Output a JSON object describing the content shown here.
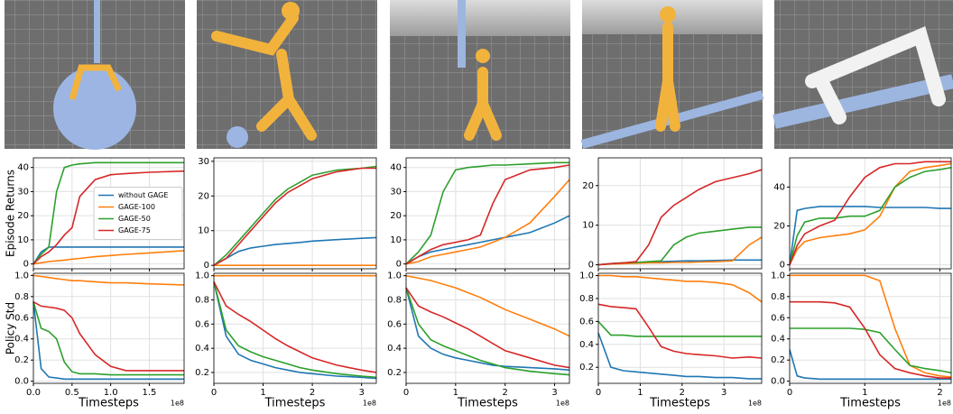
{
  "chart_data": [
    {
      "type": "line",
      "y_label": "Episode Returns",
      "legend": "center right",
      "x_tick_labels": false,
      "x": [
        0,
        0.1,
        0.2,
        0.3,
        0.4,
        0.5,
        0.6,
        0.8,
        1.0,
        1.2,
        1.5,
        1.95
      ],
      "xlim": [
        0,
        1.95
      ],
      "xticks": [
        0,
        0.5,
        1,
        1.5
      ],
      "ylim": [
        -2,
        44
      ],
      "yticks": [
        0,
        10,
        20,
        30,
        40
      ],
      "grid": true,
      "series": [
        {
          "name": "without GAGE",
          "color": "#1f77b4",
          "values": [
            0,
            5,
            7,
            7,
            7,
            7,
            7,
            7,
            7,
            7,
            7,
            7
          ]
        },
        {
          "name": "GAGE-100",
          "color": "#ff7f0e",
          "values": [
            0,
            0.5,
            1,
            1.3,
            1.6,
            2,
            2.3,
            3,
            3.5,
            4,
            4.6,
            5.5
          ]
        },
        {
          "name": "GAGE-50",
          "color": "#2ca02c",
          "values": [
            0,
            4,
            7,
            30,
            40,
            41,
            41.5,
            42,
            42,
            42,
            42,
            42
          ]
        },
        {
          "name": "GAGE-75",
          "color": "#d62728",
          "values": [
            0,
            3,
            5,
            8,
            12,
            15,
            28,
            35,
            37,
            37.5,
            38,
            38.5
          ]
        }
      ]
    },
    {
      "type": "line",
      "x_tick_labels": false,
      "x": [
        0,
        0.25,
        0.5,
        0.75,
        1,
        1.25,
        1.5,
        1.75,
        2,
        2.5,
        3,
        3.3
      ],
      "xlim": [
        0,
        3.3
      ],
      "xticks": [
        0,
        1,
        2,
        3
      ],
      "ylim": [
        -1,
        31
      ],
      "yticks": [
        0,
        10,
        20,
        30
      ],
      "grid": true,
      "series": [
        {
          "color": "#1f77b4",
          "values": [
            0,
            2,
            4,
            5,
            5.5,
            6,
            6.3,
            6.6,
            7,
            7.4,
            7.8,
            8
          ]
        },
        {
          "color": "#ff7f0e",
          "values": [
            0,
            0,
            0,
            0,
            0,
            0,
            0,
            0,
            0,
            0,
            0,
            0
          ]
        },
        {
          "color": "#2ca02c",
          "values": [
            0,
            3,
            7,
            11,
            15,
            19,
            22,
            24,
            26,
            27.5,
            28,
            28.5
          ]
        },
        {
          "color": "#d62728",
          "values": [
            0,
            2,
            6,
            10,
            14,
            18,
            21,
            23,
            25,
            27,
            28,
            28
          ]
        }
      ]
    },
    {
      "type": "line",
      "x_tick_labels": false,
      "x": [
        0,
        0.25,
        0.5,
        0.75,
        1,
        1.25,
        1.5,
        1.75,
        2,
        2.5,
        3,
        3.3
      ],
      "xlim": [
        0,
        3.3
      ],
      "xticks": [
        0,
        1,
        2,
        3
      ],
      "ylim": [
        -2,
        44
      ],
      "yticks": [
        0,
        10,
        20,
        30,
        40
      ],
      "grid": true,
      "series": [
        {
          "color": "#1f77b4",
          "values": [
            0,
            3,
            5,
            6,
            7,
            8,
            9,
            10,
            11,
            13,
            17,
            20
          ]
        },
        {
          "color": "#ff7f0e",
          "values": [
            0,
            1,
            3,
            4,
            5,
            6,
            7,
            9,
            11,
            17,
            28,
            35
          ]
        },
        {
          "color": "#2ca02c",
          "values": [
            0,
            5,
            12,
            30,
            39,
            40,
            40.5,
            41,
            41,
            41.5,
            42,
            42
          ]
        },
        {
          "color": "#d62728",
          "values": [
            0,
            3,
            6,
            8,
            9,
            10,
            12,
            25,
            35,
            39,
            40,
            41
          ]
        }
      ]
    },
    {
      "type": "line",
      "x_tick_labels": false,
      "x": [
        0,
        0.3,
        0.6,
        0.9,
        1.2,
        1.5,
        1.8,
        2.1,
        2.4,
        2.8,
        3.2,
        3.6,
        3.9
      ],
      "xlim": [
        0,
        3.9
      ],
      "xticks": [
        0,
        1,
        2,
        3
      ],
      "ylim": [
        -1,
        27
      ],
      "yticks": [
        0,
        10,
        20
      ],
      "grid": true,
      "series": [
        {
          "color": "#1f77b4",
          "values": [
            0,
            0.3,
            0.5,
            0.6,
            0.7,
            0.8,
            0.9,
            1,
            1,
            1.1,
            1.2,
            1.2,
            1.2
          ]
        },
        {
          "color": "#ff7f0e",
          "values": [
            0,
            0.2,
            0.3,
            0.4,
            0.5,
            0.5,
            0.6,
            0.6,
            0.7,
            0.8,
            1,
            5,
            7
          ]
        },
        {
          "color": "#2ca02c",
          "values": [
            0,
            0.3,
            0.5,
            0.6,
            0.8,
            1,
            5,
            7,
            8,
            8.5,
            9,
            9.5,
            9.5
          ]
        },
        {
          "color": "#d62728",
          "values": [
            0,
            0.3,
            0.5,
            0.8,
            5,
            12,
            15,
            17,
            19,
            21,
            22,
            23,
            24
          ]
        }
      ]
    },
    {
      "type": "line",
      "x_tick_labels": false,
      "x": [
        0,
        0.1,
        0.2,
        0.4,
        0.6,
        0.8,
        1.0,
        1.2,
        1.4,
        1.6,
        1.8,
        2.0,
        2.15
      ],
      "xlim": [
        0,
        2.15
      ],
      "xticks": [
        0,
        1,
        2
      ],
      "ylim": [
        -2,
        55
      ],
      "yticks": [
        0,
        20,
        40
      ],
      "grid": true,
      "series": [
        {
          "color": "#1f77b4",
          "values": [
            0,
            28,
            29,
            30,
            30,
            30,
            30,
            29.5,
            29.5,
            29.5,
            29.5,
            29,
            29
          ]
        },
        {
          "color": "#ff7f0e",
          "values": [
            0,
            8,
            12,
            14,
            15,
            16,
            18,
            25,
            40,
            48,
            50,
            51,
            52
          ]
        },
        {
          "color": "#2ca02c",
          "values": [
            0,
            15,
            22,
            24,
            24,
            25,
            25,
            28,
            40,
            45,
            48,
            49,
            50
          ]
        },
        {
          "color": "#d62728",
          "values": [
            0,
            10,
            16,
            20,
            23,
            35,
            45,
            50,
            52,
            52,
            53,
            53,
            53
          ]
        }
      ]
    },
    {
      "type": "line",
      "y_label": "Policy Std",
      "x_label": "Timesteps",
      "x_offset": "1e8",
      "x": [
        0,
        0.1,
        0.2,
        0.3,
        0.4,
        0.5,
        0.6,
        0.8,
        1.0,
        1.2,
        1.5,
        1.95
      ],
      "xlim": [
        0,
        1.95
      ],
      "xticks": [
        {
          "value": 0,
          "label": "0.0"
        },
        {
          "value": 0.5,
          "label": "0.5"
        },
        {
          "value": 1,
          "label": "1.0"
        },
        {
          "value": 1.5,
          "label": "1.5"
        }
      ],
      "ylim": [
        -0.02,
        1.02
      ],
      "yticks": [
        {
          "value": 0,
          "label": "0.0"
        },
        0.2,
        0.4,
        0.6,
        0.8,
        {
          "value": 1,
          "label": "1.0"
        }
      ],
      "grid": true,
      "series": [
        {
          "color": "#1f77b4",
          "values": [
            0.75,
            0.12,
            0.04,
            0.03,
            0.02,
            0.02,
            0.02,
            0.02,
            0.02,
            0.02,
            0.02,
            0.02
          ]
        },
        {
          "color": "#ff7f0e",
          "values": [
            1,
            0.99,
            0.98,
            0.97,
            0.96,
            0.95,
            0.95,
            0.94,
            0.93,
            0.93,
            0.92,
            0.91
          ]
        },
        {
          "color": "#2ca02c",
          "values": [
            0.75,
            0.5,
            0.47,
            0.4,
            0.18,
            0.09,
            0.07,
            0.07,
            0.06,
            0.06,
            0.06,
            0.06
          ]
        },
        {
          "color": "#d62728",
          "values": [
            0.75,
            0.71,
            0.7,
            0.69,
            0.67,
            0.6,
            0.45,
            0.25,
            0.14,
            0.1,
            0.1,
            0.1
          ]
        }
      ]
    },
    {
      "type": "line",
      "x_label": "Timesteps",
      "x_offset": "1e8",
      "x": [
        0,
        0.25,
        0.5,
        0.75,
        1,
        1.25,
        1.5,
        1.75,
        2,
        2.5,
        3,
        3.3
      ],
      "xlim": [
        0,
        3.3
      ],
      "xticks": [
        0,
        1,
        2,
        3
      ],
      "ylim": [
        0.11,
        1.02
      ],
      "yticks": [
        0.2,
        0.4,
        0.6,
        0.8,
        {
          "value": 1,
          "label": "1.0"
        }
      ],
      "grid": true,
      "series": [
        {
          "color": "#1f77b4",
          "values": [
            0.95,
            0.5,
            0.35,
            0.3,
            0.27,
            0.24,
            0.22,
            0.2,
            0.19,
            0.17,
            0.16,
            0.15
          ]
        },
        {
          "color": "#ff7f0e",
          "values": [
            1,
            1,
            1,
            1,
            1,
            1,
            1,
            1,
            1,
            1,
            1,
            1
          ]
        },
        {
          "color": "#2ca02c",
          "values": [
            0.95,
            0.55,
            0.42,
            0.37,
            0.33,
            0.3,
            0.27,
            0.24,
            0.22,
            0.19,
            0.17,
            0.16
          ]
        },
        {
          "color": "#d62728",
          "values": [
            0.95,
            0.75,
            0.68,
            0.62,
            0.55,
            0.48,
            0.42,
            0.37,
            0.32,
            0.26,
            0.22,
            0.2
          ]
        }
      ]
    },
    {
      "type": "line",
      "x_label": "Timesteps",
      "x_offset": "1e8",
      "x": [
        0,
        0.25,
        0.5,
        0.75,
        1,
        1.25,
        1.5,
        1.75,
        2,
        2.5,
        3,
        3.3
      ],
      "xlim": [
        0,
        3.3
      ],
      "xticks": [
        0,
        1,
        2,
        3
      ],
      "ylim": [
        0.11,
        1.02
      ],
      "yticks": [
        0.2,
        0.4,
        0.6,
        0.8,
        {
          "value": 1,
          "label": "1.0"
        }
      ],
      "grid": true,
      "series": [
        {
          "color": "#1f77b4",
          "values": [
            0.9,
            0.5,
            0.4,
            0.35,
            0.32,
            0.3,
            0.28,
            0.26,
            0.25,
            0.24,
            0.23,
            0.22
          ]
        },
        {
          "color": "#ff7f0e",
          "values": [
            1,
            0.98,
            0.96,
            0.93,
            0.9,
            0.86,
            0.82,
            0.77,
            0.72,
            0.64,
            0.56,
            0.5
          ]
        },
        {
          "color": "#2ca02c",
          "values": [
            0.9,
            0.6,
            0.47,
            0.42,
            0.38,
            0.34,
            0.3,
            0.27,
            0.24,
            0.21,
            0.19,
            0.18
          ]
        },
        {
          "color": "#d62728",
          "values": [
            0.9,
            0.75,
            0.7,
            0.66,
            0.61,
            0.56,
            0.5,
            0.44,
            0.38,
            0.32,
            0.26,
            0.24
          ]
        }
      ]
    },
    {
      "type": "line",
      "x_label": "Timesteps",
      "x_offset": "1e8",
      "x": [
        0,
        0.3,
        0.6,
        0.9,
        1.2,
        1.5,
        1.8,
        2.1,
        2.4,
        2.8,
        3.2,
        3.6,
        3.9
      ],
      "xlim": [
        0,
        3.9
      ],
      "xticks": [
        0,
        1,
        2,
        3
      ],
      "ylim": [
        0.06,
        1.02
      ],
      "yticks": [
        0.2,
        0.4,
        0.6,
        0.8,
        {
          "value": 1,
          "label": "1.0"
        }
      ],
      "grid": true,
      "series": [
        {
          "color": "#1f77b4",
          "values": [
            0.5,
            0.2,
            0.17,
            0.16,
            0.15,
            0.14,
            0.13,
            0.12,
            0.12,
            0.11,
            0.11,
            0.1,
            0.1
          ]
        },
        {
          "color": "#ff7f0e",
          "values": [
            1,
            1,
            0.99,
            0.99,
            0.98,
            0.97,
            0.96,
            0.95,
            0.95,
            0.94,
            0.92,
            0.85,
            0.77
          ]
        },
        {
          "color": "#2ca02c",
          "values": [
            0.6,
            0.48,
            0.48,
            0.47,
            0.47,
            0.47,
            0.47,
            0.47,
            0.47,
            0.47,
            0.47,
            0.47,
            0.47
          ]
        },
        {
          "color": "#d62728",
          "values": [
            0.75,
            0.73,
            0.72,
            0.71,
            0.55,
            0.38,
            0.34,
            0.32,
            0.31,
            0.3,
            0.28,
            0.29,
            0.28
          ]
        }
      ]
    },
    {
      "type": "line",
      "x_label": "Timesteps",
      "x_offset": "1e8",
      "x": [
        0,
        0.1,
        0.2,
        0.4,
        0.6,
        0.8,
        1.0,
        1.2,
        1.4,
        1.6,
        1.8,
        2.0,
        2.15
      ],
      "xlim": [
        0,
        2.15
      ],
      "xticks": [
        0,
        1,
        2
      ],
      "ylim": [
        -0.02,
        1.02
      ],
      "yticks": [
        {
          "value": 0,
          "label": "0.0"
        },
        0.2,
        0.4,
        0.6,
        0.8,
        {
          "value": 1,
          "label": "1.0"
        }
      ],
      "grid": true,
      "series": [
        {
          "color": "#1f77b4",
          "values": [
            0.3,
            0.05,
            0.03,
            0.02,
            0.02,
            0.02,
            0.02,
            0.02,
            0.02,
            0.02,
            0.02,
            0.02,
            0.02
          ]
        },
        {
          "color": "#ff7f0e",
          "values": [
            1,
            1,
            1,
            1,
            1,
            1,
            1,
            0.95,
            0.5,
            0.15,
            0.08,
            0.05,
            0.04
          ]
        },
        {
          "color": "#2ca02c",
          "values": [
            0.5,
            0.5,
            0.5,
            0.5,
            0.5,
            0.5,
            0.49,
            0.46,
            0.3,
            0.15,
            0.12,
            0.1,
            0.08
          ]
        },
        {
          "color": "#d62728",
          "values": [
            0.75,
            0.75,
            0.75,
            0.75,
            0.74,
            0.7,
            0.5,
            0.25,
            0.12,
            0.08,
            0.05,
            0.03,
            0.03
          ]
        }
      ]
    }
  ]
}
